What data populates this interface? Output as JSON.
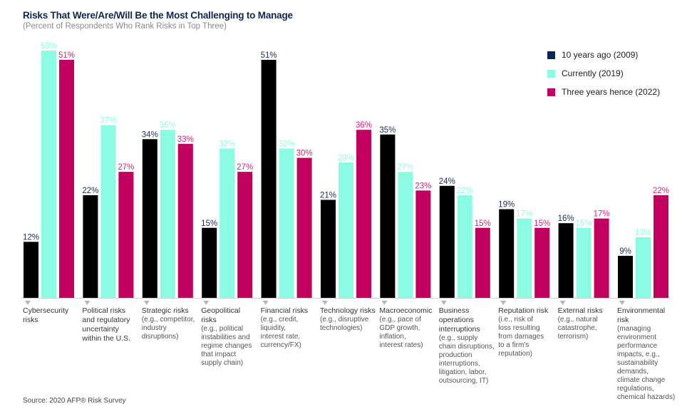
{
  "chart_data": {
    "type": "bar",
    "title": "Risks That Were/Are/Will Be the Most Challenging to Manage",
    "subtitle": "(Percent of Respondents Who Rank Risks in Top Three)",
    "xlabel": "",
    "ylabel": "",
    "ylim": [
      0,
      55
    ],
    "grid": false,
    "legend_position": "top-right",
    "categories": [
      {
        "main": "Cybersecurity\nrisks",
        "detail": ""
      },
      {
        "main": "Political risks\nand regulatory\nuncertainty\nwithin the U.S.",
        "detail": ""
      },
      {
        "main": "Strategic risks",
        "detail": "(e.g., competitor,\nindustry\ndisruptions)"
      },
      {
        "main": "Geopolitical\nrisks",
        "detail": "(e.g., political\ninstabilities and\nregime changes\nthat impact\nsupply chain)"
      },
      {
        "main": "Financial risks",
        "detail": "(e.g., credit,\nliquidity,\ninterest rate,\ncurrency/FX)"
      },
      {
        "main": "Technology risks",
        "detail": "(e.g., disruptive\ntechnologies)"
      },
      {
        "main": "Macroeconomic",
        "detail": "(e.g., pace of\nGDP growth,\ninflation,\ninterest rates)"
      },
      {
        "main": "Business\noperations\ninterruptions",
        "detail": "(e.g., supply\nchain disruptions,\nproduction\ninterruptions,\nlitigation, labor,\noutsourcing, IT)"
      },
      {
        "main": "Reputation risk",
        "detail": "(i.e., risk of\nloss resulting\nfrom damages\nto a firm's\nreputation)"
      },
      {
        "main": "External risks",
        "detail": "(e.g., natural\ncatastrophe,\nterrorism)"
      },
      {
        "main": "Environmental\nrisk",
        "detail": "(managing\nenvironment\nperformance\nimpacts, e.g.,\nsustainability\ndemands,\nclimate change\nregulations,\nchemical hazards)"
      }
    ],
    "series": [
      {
        "name": "10 years ago (2009)",
        "color": "#000000",
        "legend_color": "#0f2552",
        "label_color": "#1b2f5c",
        "values": [
          12,
          22,
          34,
          15,
          51,
          21,
          35,
          24,
          19,
          16,
          9
        ]
      },
      {
        "name": "Currently (2019)",
        "color": "#8bfbe3",
        "legend_color": "#8bfbe3",
        "label_color": "#8bfbe3",
        "values": [
          53,
          37,
          36,
          32,
          32,
          29,
          27,
          22,
          17,
          15,
          13
        ]
      },
      {
        "name": "Three years hence (2022)",
        "color": "#c2005f",
        "legend_color": "#c2005f",
        "label_color": "#d0277a",
        "values": [
          51,
          27,
          33,
          27,
          30,
          36,
          23,
          15,
          15,
          17,
          22
        ]
      }
    ],
    "value_suffix": "%"
  },
  "source": "Source: 2020 AFP® Risk Survey"
}
